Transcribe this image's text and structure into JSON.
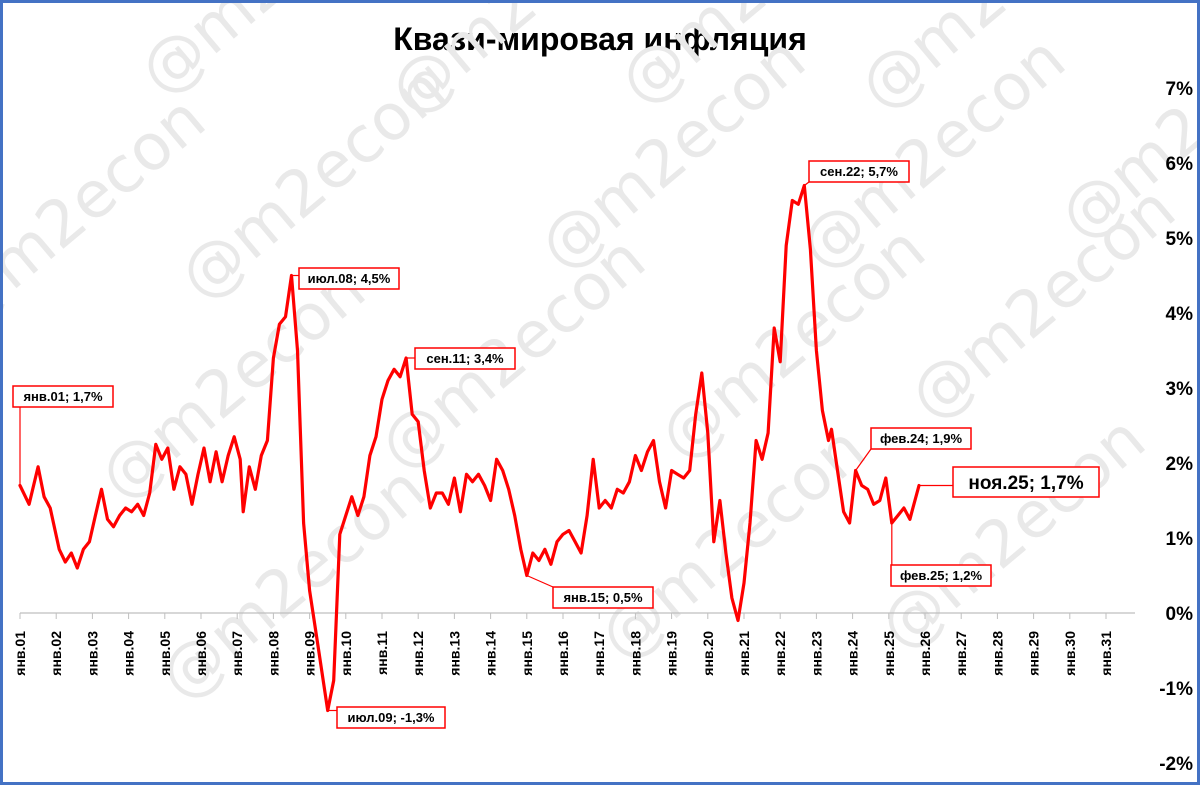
{
  "chart_data": {
    "type": "line",
    "title": "Квази-мировая инфляция",
    "watermark": "@m2econ",
    "ylim": [
      -2,
      7
    ],
    "yticks": [
      "-2%",
      "-1%",
      "0%",
      "1%",
      "2%",
      "3%",
      "4%",
      "5%",
      "6%",
      "7%"
    ],
    "y_axis_position": "right",
    "grid": false,
    "line_color": "#ff0000",
    "x_tick_labels": [
      "янв.01",
      "янв.02",
      "янв.03",
      "янв.04",
      "янв.05",
      "янв.06",
      "янв.07",
      "янв.08",
      "янв.09",
      "янв.10",
      "янв.11",
      "янв.12",
      "янв.13",
      "янв.14",
      "янв.15",
      "янв.16",
      "янв.17",
      "янв.18",
      "янв.19",
      "янв.20",
      "янв.21",
      "янв.22",
      "янв.23",
      "янв.24",
      "янв.25",
      "янв.26",
      "янв.27",
      "янв.28",
      "янв.29",
      "янв.30",
      "янв.31"
    ],
    "x_start_year": 2001,
    "series": [
      {
        "color": "#ff0000",
        "points": [
          [
            "2001-01",
            1.7
          ],
          [
            "2001-04",
            1.45
          ],
          [
            "2001-07",
            1.95
          ],
          [
            "2001-09",
            1.55
          ],
          [
            "2001-11",
            1.4
          ],
          [
            "2002-02",
            0.85
          ],
          [
            "2002-04",
            0.68
          ],
          [
            "2002-06",
            0.8
          ],
          [
            "2002-08",
            0.6
          ],
          [
            "2002-10",
            0.85
          ],
          [
            "2002-12",
            0.95
          ],
          [
            "2003-02",
            1.3
          ],
          [
            "2003-04",
            1.65
          ],
          [
            "2003-06",
            1.25
          ],
          [
            "2003-08",
            1.15
          ],
          [
            "2003-10",
            1.3
          ],
          [
            "2003-12",
            1.4
          ],
          [
            "2004-02",
            1.35
          ],
          [
            "2004-04",
            1.45
          ],
          [
            "2004-06",
            1.3
          ],
          [
            "2004-08",
            1.6
          ],
          [
            "2004-10",
            2.25
          ],
          [
            "2004-12",
            2.05
          ],
          [
            "2005-02",
            2.2
          ],
          [
            "2005-04",
            1.65
          ],
          [
            "2005-06",
            1.95
          ],
          [
            "2005-08",
            1.85
          ],
          [
            "2005-10",
            1.45
          ],
          [
            "2005-12",
            1.85
          ],
          [
            "2006-02",
            2.2
          ],
          [
            "2006-04",
            1.75
          ],
          [
            "2006-06",
            2.15
          ],
          [
            "2006-08",
            1.75
          ],
          [
            "2006-10",
            2.1
          ],
          [
            "2006-12",
            2.35
          ],
          [
            "2007-02",
            2.05
          ],
          [
            "2007-03",
            1.35
          ],
          [
            "2007-05",
            1.95
          ],
          [
            "2007-07",
            1.65
          ],
          [
            "2007-09",
            2.1
          ],
          [
            "2007-11",
            2.3
          ],
          [
            "2008-01",
            3.4
          ],
          [
            "2008-03",
            3.85
          ],
          [
            "2008-05",
            3.95
          ],
          [
            "2008-07",
            4.5
          ],
          [
            "2008-09",
            3.5
          ],
          [
            "2008-11",
            1.2
          ],
          [
            "2009-01",
            0.3
          ],
          [
            "2009-04",
            -0.5
          ],
          [
            "2009-07",
            -1.3
          ],
          [
            "2009-09",
            -0.9
          ],
          [
            "2009-11",
            1.05
          ],
          [
            "2010-01",
            1.3
          ],
          [
            "2010-03",
            1.55
          ],
          [
            "2010-05",
            1.3
          ],
          [
            "2010-07",
            1.55
          ],
          [
            "2010-09",
            2.1
          ],
          [
            "2010-11",
            2.35
          ],
          [
            "2011-01",
            2.85
          ],
          [
            "2011-03",
            3.1
          ],
          [
            "2011-05",
            3.25
          ],
          [
            "2011-07",
            3.15
          ],
          [
            "2011-09",
            3.4
          ],
          [
            "2011-11",
            2.65
          ],
          [
            "2012-01",
            2.55
          ],
          [
            "2012-03",
            1.9
          ],
          [
            "2012-05",
            1.4
          ],
          [
            "2012-07",
            1.6
          ],
          [
            "2012-09",
            1.6
          ],
          [
            "2012-11",
            1.45
          ],
          [
            "2013-01",
            1.8
          ],
          [
            "2013-03",
            1.35
          ],
          [
            "2013-05",
            1.85
          ],
          [
            "2013-07",
            1.75
          ],
          [
            "2013-09",
            1.85
          ],
          [
            "2013-11",
            1.7
          ],
          [
            "2014-01",
            1.5
          ],
          [
            "2014-03",
            2.05
          ],
          [
            "2014-05",
            1.9
          ],
          [
            "2014-07",
            1.65
          ],
          [
            "2014-09",
            1.3
          ],
          [
            "2014-11",
            0.85
          ],
          [
            "2015-01",
            0.5
          ],
          [
            "2015-03",
            0.8
          ],
          [
            "2015-05",
            0.7
          ],
          [
            "2015-07",
            0.85
          ],
          [
            "2015-09",
            0.65
          ],
          [
            "2015-11",
            0.95
          ],
          [
            "2016-01",
            1.05
          ],
          [
            "2016-03",
            1.1
          ],
          [
            "2016-05",
            0.95
          ],
          [
            "2016-07",
            0.8
          ],
          [
            "2016-09",
            1.3
          ],
          [
            "2016-11",
            2.05
          ],
          [
            "2017-01",
            1.4
          ],
          [
            "2017-03",
            1.5
          ],
          [
            "2017-05",
            1.4
          ],
          [
            "2017-07",
            1.65
          ],
          [
            "2017-09",
            1.6
          ],
          [
            "2017-11",
            1.75
          ],
          [
            "2018-01",
            2.1
          ],
          [
            "2018-03",
            1.9
          ],
          [
            "2018-05",
            2.15
          ],
          [
            "2018-07",
            2.3
          ],
          [
            "2018-09",
            1.75
          ],
          [
            "2018-11",
            1.4
          ],
          [
            "2019-01",
            1.9
          ],
          [
            "2019-03",
            1.85
          ],
          [
            "2019-05",
            1.8
          ],
          [
            "2019-07",
            1.9
          ],
          [
            "2019-09",
            2.65
          ],
          [
            "2019-11",
            3.2
          ],
          [
            "2020-01",
            2.4
          ],
          [
            "2020-03",
            0.95
          ],
          [
            "2020-05",
            1.5
          ],
          [
            "2020-07",
            0.8
          ],
          [
            "2020-09",
            0.2
          ],
          [
            "2020-11",
            -0.1
          ],
          [
            "2021-01",
            0.4
          ],
          [
            "2021-03",
            1.2
          ],
          [
            "2021-05",
            2.3
          ],
          [
            "2021-07",
            2.05
          ],
          [
            "2021-09",
            2.4
          ],
          [
            "2021-11",
            3.8
          ],
          [
            "2022-01",
            3.35
          ],
          [
            "2022-03",
            4.9
          ],
          [
            "2022-05",
            5.5
          ],
          [
            "2022-07",
            5.45
          ],
          [
            "2022-09",
            5.7
          ],
          [
            "2022-11",
            4.85
          ],
          [
            "2023-01",
            3.5
          ],
          [
            "2023-03",
            2.7
          ],
          [
            "2023-05",
            2.3
          ],
          [
            "2023-06",
            2.45
          ],
          [
            "2023-08",
            1.9
          ],
          [
            "2023-10",
            1.35
          ],
          [
            "2023-12",
            1.2
          ],
          [
            "2024-02",
            1.9
          ],
          [
            "2024-04",
            1.7
          ],
          [
            "2024-06",
            1.65
          ],
          [
            "2024-08",
            1.45
          ],
          [
            "2024-10",
            1.5
          ],
          [
            "2024-12",
            1.8
          ],
          [
            "2025-02",
            1.2
          ],
          [
            "2025-04",
            1.3
          ],
          [
            "2025-06",
            1.4
          ],
          [
            "2025-08",
            1.25
          ],
          [
            "2025-09",
            1.4
          ],
          [
            "2025-11",
            1.7
          ]
        ]
      }
    ],
    "annotations": [
      {
        "label": "янв.01; 1,7%",
        "x": "2001-01",
        "y": 1.7,
        "size": "small"
      },
      {
        "label": "июл.08; 4,5%",
        "x": "2008-07",
        "y": 4.5,
        "size": "small"
      },
      {
        "label": "июл.09; -1,3%",
        "x": "2009-07",
        "y": -1.3,
        "size": "small"
      },
      {
        "label": "сен.11; 3,4%",
        "x": "2011-09",
        "y": 3.4,
        "size": "small"
      },
      {
        "label": "янв.15; 0,5%",
        "x": "2015-01",
        "y": 0.5,
        "size": "small"
      },
      {
        "label": "сен.22; 5,7%",
        "x": "2022-09",
        "y": 5.7,
        "size": "small"
      },
      {
        "label": "фев.24; 1,9%",
        "x": "2024-02",
        "y": 1.9,
        "size": "small"
      },
      {
        "label": "фев.25; 1,2%",
        "x": "2025-02",
        "y": 1.2,
        "size": "small"
      },
      {
        "label": "ноя.25; 1,7%",
        "x": "2025-11",
        "y": 1.7,
        "size": "large"
      }
    ]
  }
}
